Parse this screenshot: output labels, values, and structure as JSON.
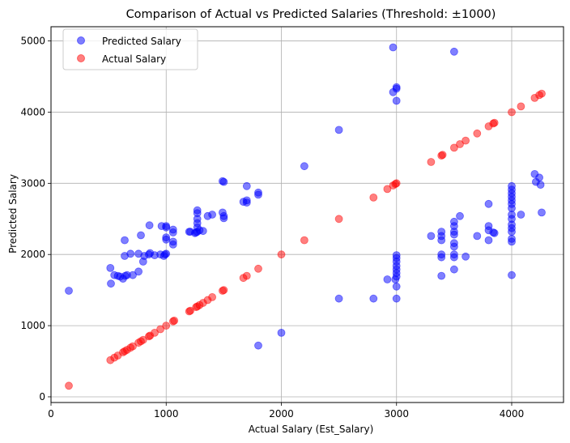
{
  "chart_data": {
    "type": "scatter",
    "title": "Comparison of Actual vs Predicted Salaries (Threshold: ±1000)",
    "xlabel": "Actual Salary (Est_Salary)",
    "ylabel": "Predicted Salary",
    "xlim": [
      0,
      4450
    ],
    "ylim": [
      -80,
      5200
    ],
    "xticks": [
      0,
      1000,
      2000,
      3000,
      4000
    ],
    "yticks": [
      0,
      1000,
      2000,
      3000,
      4000,
      5000
    ],
    "grid": true,
    "legend_position": "top-left",
    "series": [
      {
        "name": "Predicted Salary",
        "color": "#0000ff",
        "points": [
          [
            155,
            1490
          ],
          [
            515,
            1810
          ],
          [
            520,
            1590
          ],
          [
            550,
            1710
          ],
          [
            580,
            1700
          ],
          [
            600,
            1690
          ],
          [
            625,
            1660
          ],
          [
            640,
            1980
          ],
          [
            640,
            2200
          ],
          [
            645,
            1700
          ],
          [
            660,
            1710
          ],
          [
            690,
            2010
          ],
          [
            710,
            1710
          ],
          [
            760,
            2010
          ],
          [
            760,
            1760
          ],
          [
            780,
            2270
          ],
          [
            800,
            1900
          ],
          [
            810,
            1980
          ],
          [
            850,
            2000
          ],
          [
            855,
            2410
          ],
          [
            860,
            2020
          ],
          [
            900,
            1990
          ],
          [
            950,
            2000
          ],
          [
            960,
            2400
          ],
          [
            980,
            1980
          ],
          [
            990,
            2000
          ],
          [
            1000,
            2400
          ],
          [
            1000,
            2380
          ],
          [
            1000,
            2240
          ],
          [
            1000,
            2210
          ],
          [
            1000,
            2010
          ],
          [
            1060,
            2350
          ],
          [
            1060,
            2310
          ],
          [
            1060,
            2180
          ],
          [
            1060,
            2140
          ],
          [
            1200,
            2320
          ],
          [
            1210,
            2320
          ],
          [
            1250,
            2300
          ],
          [
            1260,
            2310
          ],
          [
            1270,
            2620
          ],
          [
            1270,
            2580
          ],
          [
            1270,
            2500
          ],
          [
            1270,
            2440
          ],
          [
            1270,
            2380
          ],
          [
            1270,
            2320
          ],
          [
            1290,
            2340
          ],
          [
            1320,
            2330
          ],
          [
            1360,
            2540
          ],
          [
            1400,
            2560
          ],
          [
            1490,
            3030
          ],
          [
            1500,
            3020
          ],
          [
            1490,
            2590
          ],
          [
            1500,
            2540
          ],
          [
            1500,
            2510
          ],
          [
            1670,
            2740
          ],
          [
            1700,
            2960
          ],
          [
            1700,
            2760
          ],
          [
            1700,
            2730
          ],
          [
            1800,
            2870
          ],
          [
            1800,
            2840
          ],
          [
            1800,
            720
          ],
          [
            2000,
            900
          ],
          [
            2200,
            3240
          ],
          [
            2500,
            3750
          ],
          [
            2500,
            1380
          ],
          [
            2800,
            1380
          ],
          [
            2920,
            1650
          ],
          [
            2970,
            4910
          ],
          [
            2970,
            4280
          ],
          [
            2990,
            1650
          ],
          [
            3000,
            4350
          ],
          [
            3000,
            4330
          ],
          [
            3000,
            4160
          ],
          [
            3000,
            1990
          ],
          [
            3000,
            1950
          ],
          [
            3000,
            1900
          ],
          [
            3000,
            1840
          ],
          [
            3000,
            1790
          ],
          [
            3000,
            1740
          ],
          [
            3000,
            1690
          ],
          [
            3000,
            1550
          ],
          [
            3000,
            1380
          ],
          [
            3300,
            2260
          ],
          [
            3390,
            2320
          ],
          [
            3390,
            2260
          ],
          [
            3390,
            2200
          ],
          [
            3390,
            2000
          ],
          [
            3390,
            1960
          ],
          [
            3390,
            1700
          ],
          [
            3500,
            4850
          ],
          [
            3500,
            2460
          ],
          [
            3500,
            2400
          ],
          [
            3500,
            2320
          ],
          [
            3500,
            2280
          ],
          [
            3500,
            2160
          ],
          [
            3500,
            2110
          ],
          [
            3500,
            2000
          ],
          [
            3500,
            1960
          ],
          [
            3500,
            1790
          ],
          [
            3550,
            2540
          ],
          [
            3600,
            1970
          ],
          [
            3700,
            2260
          ],
          [
            3800,
            2710
          ],
          [
            3800,
            2400
          ],
          [
            3800,
            2340
          ],
          [
            3800,
            2200
          ],
          [
            3840,
            2310
          ],
          [
            3850,
            2300
          ],
          [
            4000,
            2960
          ],
          [
            4000,
            2910
          ],
          [
            4000,
            2860
          ],
          [
            4000,
            2810
          ],
          [
            4000,
            2760
          ],
          [
            4000,
            2710
          ],
          [
            4000,
            2650
          ],
          [
            4000,
            2560
          ],
          [
            4000,
            2500
          ],
          [
            4000,
            2420
          ],
          [
            4000,
            2370
          ],
          [
            4000,
            2320
          ],
          [
            4000,
            2220
          ],
          [
            4000,
            2180
          ],
          [
            4000,
            1710
          ],
          [
            4080,
            2560
          ],
          [
            4200,
            3130
          ],
          [
            4210,
            3020
          ],
          [
            4240,
            3080
          ],
          [
            4250,
            2980
          ],
          [
            4260,
            2590
          ]
        ]
      },
      {
        "name": "Actual Salary",
        "color": "#ff0000",
        "points": [
          [
            155,
            155
          ],
          [
            515,
            515
          ],
          [
            550,
            550
          ],
          [
            580,
            580
          ],
          [
            625,
            625
          ],
          [
            640,
            640
          ],
          [
            660,
            660
          ],
          [
            690,
            690
          ],
          [
            710,
            710
          ],
          [
            760,
            760
          ],
          [
            780,
            780
          ],
          [
            800,
            800
          ],
          [
            850,
            850
          ],
          [
            860,
            860
          ],
          [
            900,
            900
          ],
          [
            950,
            950
          ],
          [
            1000,
            1000
          ],
          [
            1060,
            1060
          ],
          [
            1070,
            1070
          ],
          [
            1200,
            1200
          ],
          [
            1210,
            1210
          ],
          [
            1260,
            1260
          ],
          [
            1270,
            1270
          ],
          [
            1290,
            1290
          ],
          [
            1320,
            1320
          ],
          [
            1360,
            1360
          ],
          [
            1400,
            1400
          ],
          [
            1490,
            1490
          ],
          [
            1500,
            1500
          ],
          [
            1670,
            1670
          ],
          [
            1700,
            1700
          ],
          [
            1800,
            1800
          ],
          [
            2000,
            2000
          ],
          [
            2200,
            2200
          ],
          [
            2500,
            2500
          ],
          [
            2800,
            2800
          ],
          [
            2920,
            2920
          ],
          [
            2970,
            2970
          ],
          [
            2990,
            2990
          ],
          [
            3000,
            3000
          ],
          [
            3300,
            3300
          ],
          [
            3390,
            3390
          ],
          [
            3400,
            3400
          ],
          [
            3500,
            3500
          ],
          [
            3550,
            3550
          ],
          [
            3600,
            3600
          ],
          [
            3700,
            3700
          ],
          [
            3800,
            3800
          ],
          [
            3840,
            3840
          ],
          [
            3850,
            3850
          ],
          [
            4000,
            4000
          ],
          [
            4080,
            4080
          ],
          [
            4200,
            4200
          ],
          [
            4240,
            4240
          ],
          [
            4260,
            4260
          ]
        ]
      }
    ]
  }
}
